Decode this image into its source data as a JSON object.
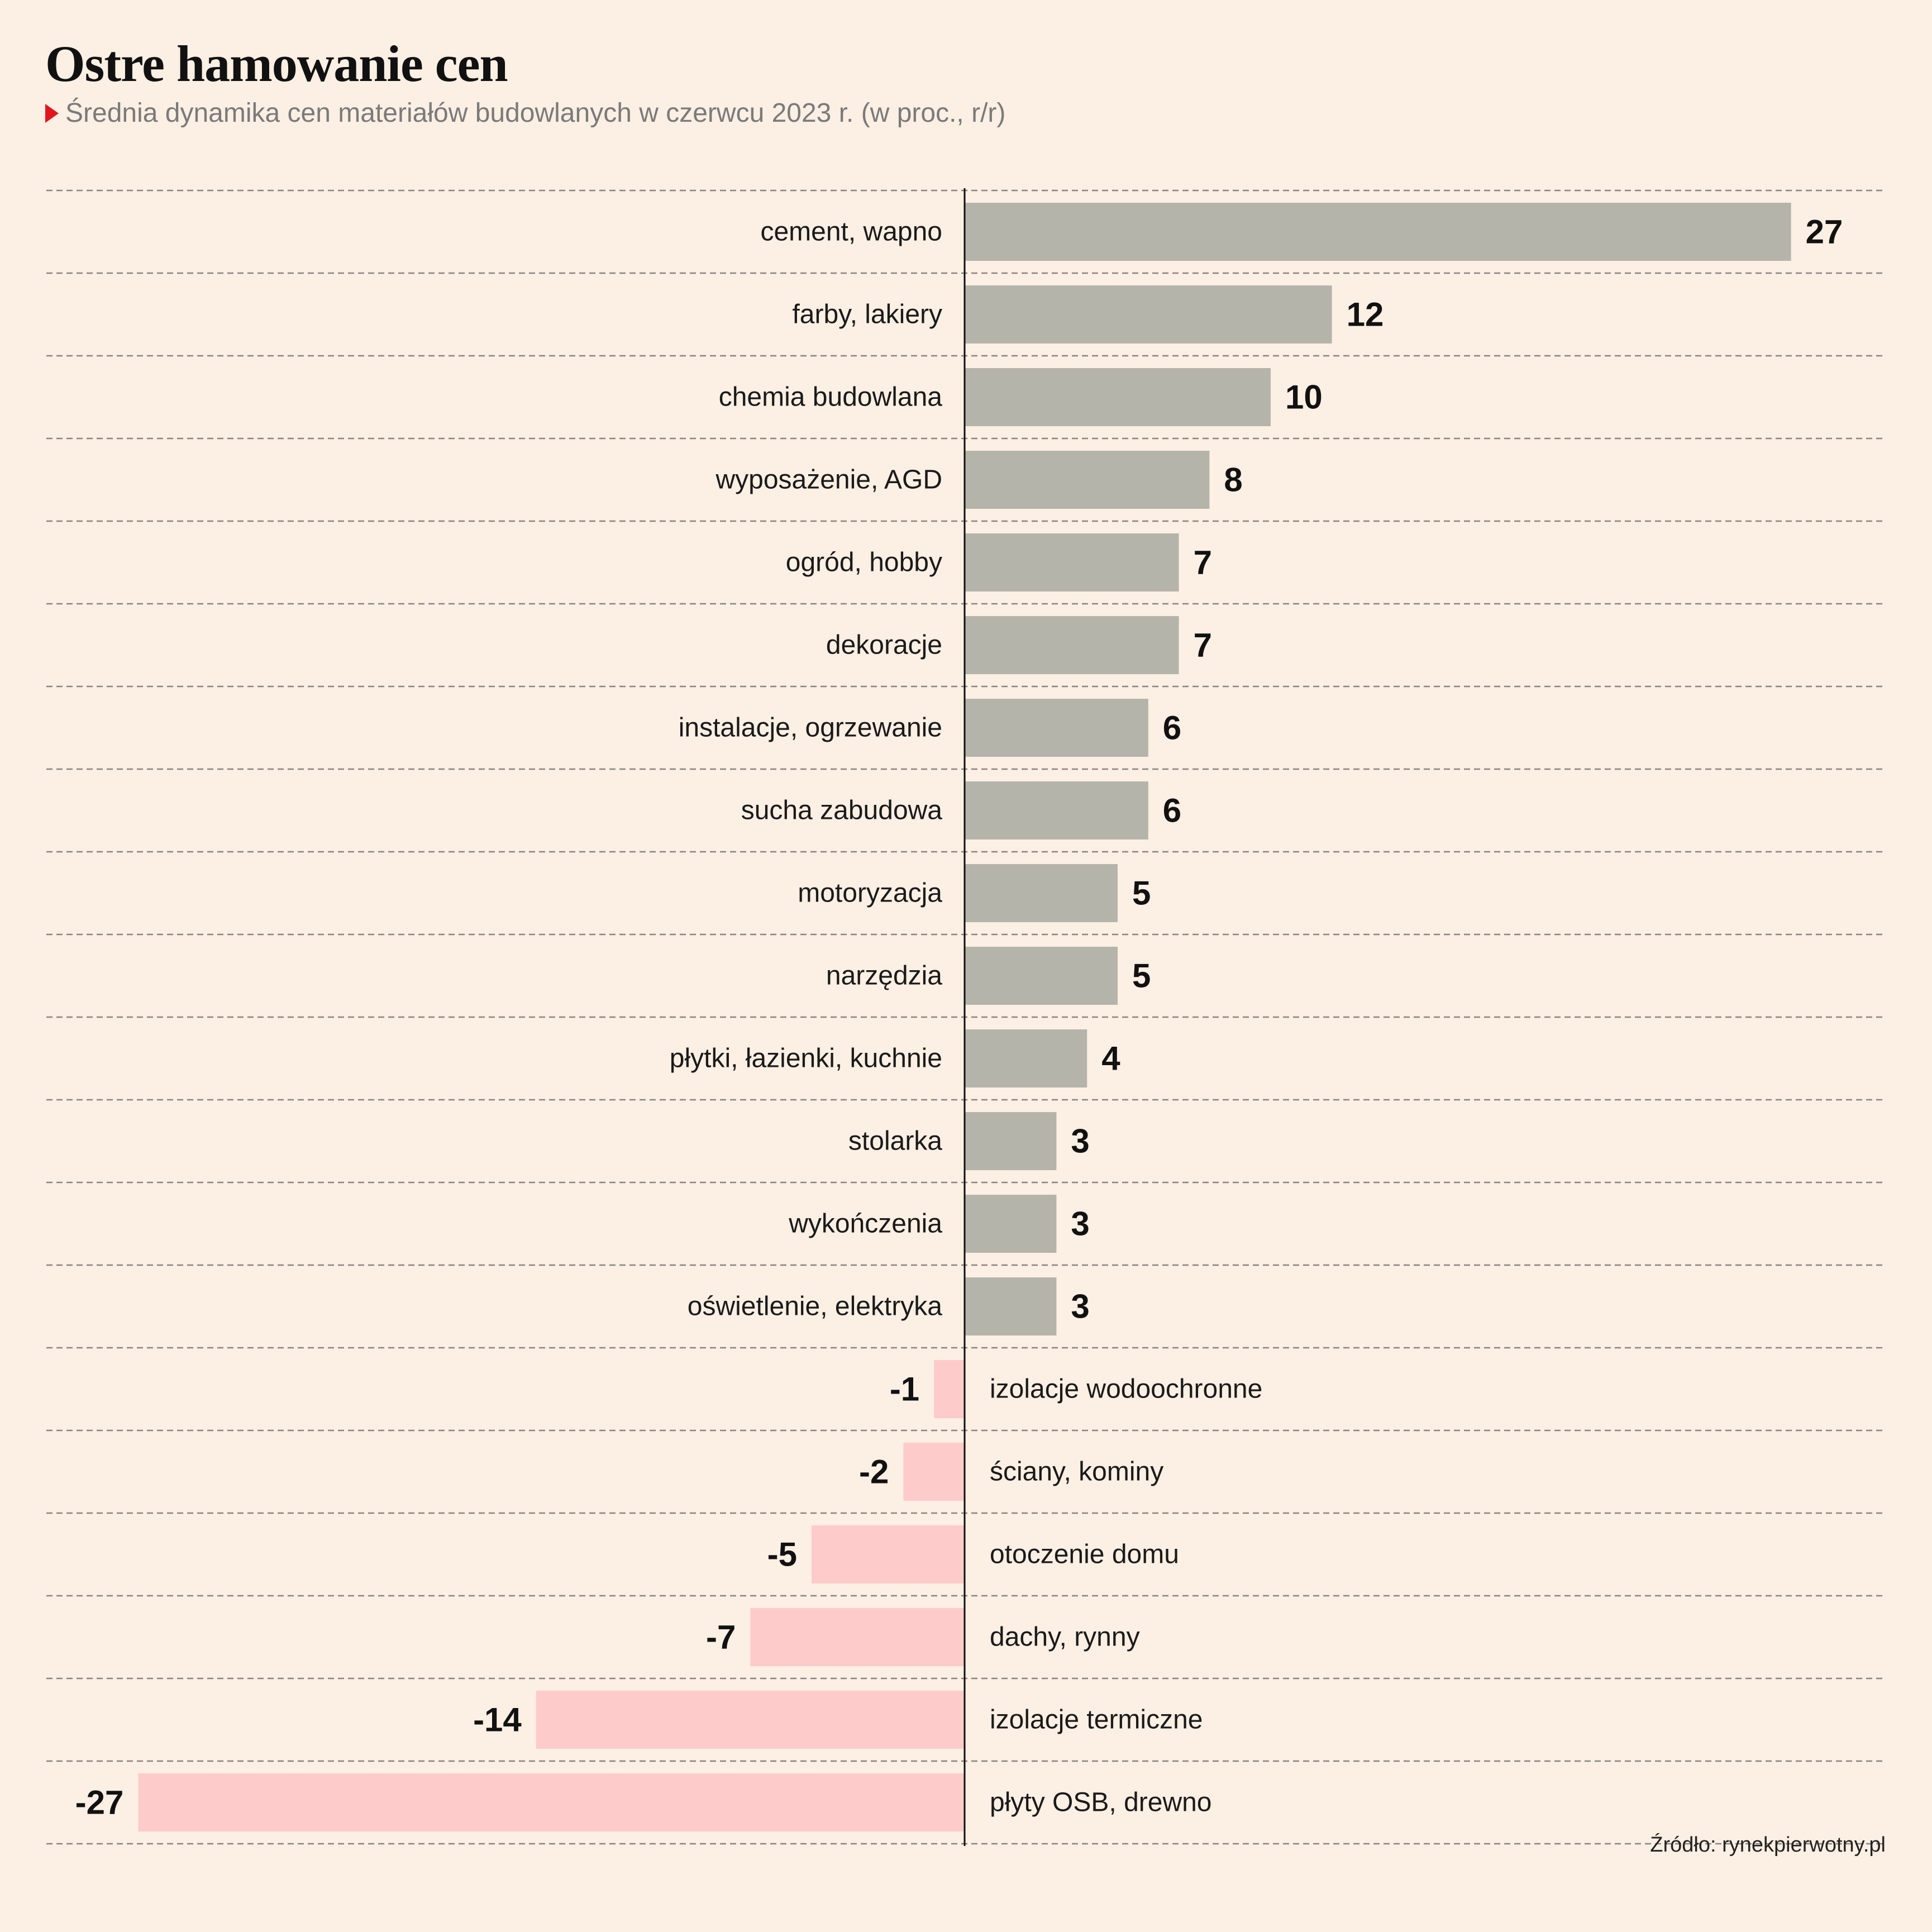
{
  "title": "Ostre hamowanie cen",
  "subtitle": "Średnia dynamika cen materiałów budowlanych w czerwcu 2023 r. (w proc., r/r)",
  "source": "Źródło: rynekpierwotny.pl",
  "colors": {
    "background": "#fcefe3",
    "positive_bar": "#b5b4ab",
    "negative_bar": "#fecbcb",
    "accent_marker": "#e2151c",
    "gridline": "#8a8580",
    "axis": "#111111"
  },
  "chart_data": {
    "type": "bar",
    "orientation": "horizontal",
    "categories": [
      "cement, wapno",
      "farby, lakiery",
      "chemia budowlana",
      "wyposażenie, AGD",
      "ogród, hobby",
      "dekoracje",
      "instalacje, ogrzewanie",
      "sucha zabudowa",
      "motoryzacja",
      "narzędzia",
      "płytki, łazienki, kuchnie",
      "stolarka",
      "wykończenia",
      "oświetlenie, elektryka",
      "izolacje wodoochronne",
      "ściany, kominy",
      "otoczenie domu",
      "dachy, rynny",
      "izolacje termiczne",
      "płyty OSB, drewno"
    ],
    "values": [
      27,
      12,
      10,
      8,
      7,
      7,
      6,
      6,
      5,
      5,
      4,
      3,
      3,
      3,
      -1,
      -2,
      -5,
      -7,
      -14,
      -27
    ],
    "value_labels": [
      "27",
      "12",
      "10",
      "8",
      "7",
      "7",
      "6",
      "6",
      "5",
      "5",
      "4",
      "3",
      "3",
      "3",
      "-1",
      "-2",
      "-5",
      "-7",
      "-14",
      "-27"
    ],
    "xlim": [
      -30,
      30
    ],
    "grid": true,
    "legend": "none"
  }
}
